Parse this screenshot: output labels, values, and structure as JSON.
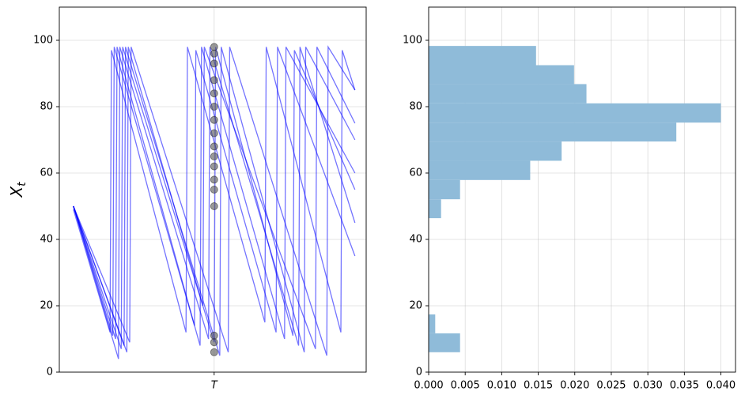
{
  "chart_data": [
    {
      "type": "line",
      "ylabel": "X",
      "ylabel_subscript": "t",
      "xlim": [
        -5,
        104
      ],
      "xticks": [
        {
          "value": 50,
          "label": "T"
        }
      ],
      "ylim": [
        0,
        110
      ],
      "yticks": [
        0,
        20,
        40,
        60,
        80,
        100
      ],
      "grid": true,
      "color": "#0000ff",
      "series": [
        {
          "x": [
            0,
            15,
            15.5,
            45,
            45.5,
            75,
            75.5,
            100
          ],
          "values": [
            50,
            10,
            98,
            8,
            98,
            10,
            98,
            60
          ]
        },
        {
          "x": [
            0,
            18,
            18.5,
            52,
            52.5,
            82,
            82.5,
            100
          ],
          "values": [
            50,
            8,
            98,
            5,
            98,
            6,
            98,
            70
          ]
        },
        {
          "x": [
            0,
            13,
            13.5,
            40,
            40.5,
            68,
            68.5,
            95,
            95.5,
            100
          ],
          "values": [
            49,
            12,
            97,
            12,
            98,
            15,
            98,
            12,
            97,
            85
          ]
        },
        {
          "x": [
            0,
            16,
            16.5,
            48,
            48.5,
            80,
            80.5,
            100
          ],
          "values": [
            50,
            4,
            98,
            10,
            98,
            8,
            98,
            45
          ]
        },
        {
          "x": [
            0,
            20,
            20.5,
            55,
            55.5,
            90,
            90.5,
            100
          ],
          "values": [
            50,
            9,
            98,
            6,
            98,
            5,
            98,
            85
          ]
        },
        {
          "x": [
            0,
            14,
            14.5,
            43,
            43.5,
            72,
            72.5,
            100
          ],
          "values": [
            50,
            11,
            98,
            14,
            97,
            12,
            98,
            35
          ]
        },
        {
          "x": [
            0,
            17,
            17.5,
            50,
            50.5,
            78,
            78.5,
            100
          ],
          "values": [
            50,
            7,
            98,
            9,
            98,
            11,
            97,
            55
          ]
        },
        {
          "x": [
            0,
            19,
            19.5,
            46,
            46.5,
            86,
            86.5,
            100
          ],
          "values": [
            50,
            6,
            98,
            20,
            98,
            7,
            98,
            75
          ]
        }
      ],
      "markers": {
        "color": "#555555",
        "values": [
          98,
          96,
          93,
          88,
          84,
          80,
          76,
          72,
          68,
          65,
          62,
          58,
          55,
          50,
          11,
          9,
          6
        ]
      }
    },
    {
      "type": "histogram",
      "orientation": "horizontal",
      "color": "#8fbbd9",
      "bins": [
        6.0,
        11.7,
        17.4,
        23.2,
        29.0,
        34.8,
        40.6,
        46.4,
        52.1,
        57.9,
        63.7,
        69.5,
        75.2,
        81.0,
        86.8,
        92.5,
        98.3
      ],
      "values": [
        0.0043,
        0.0009,
        0,
        0,
        0,
        0,
        0,
        0.0017,
        0.0043,
        0.0139,
        0.0182,
        0.0339,
        0.04,
        0.0216,
        0.0199,
        0.0147
      ],
      "xlim": [
        0,
        0.042
      ],
      "xticks": [
        {
          "value": 0,
          "label": "0.000"
        },
        {
          "value": 0.005,
          "label": "0.005"
        },
        {
          "value": 0.01,
          "label": "0.010"
        },
        {
          "value": 0.015,
          "label": "0.015"
        },
        {
          "value": 0.02,
          "label": "0.020"
        },
        {
          "value": 0.025,
          "label": "0.025"
        },
        {
          "value": 0.03,
          "label": "0.030"
        },
        {
          "value": 0.035,
          "label": "0.035"
        },
        {
          "value": 0.04,
          "label": "0.040"
        }
      ],
      "ylim": [
        0,
        110
      ],
      "yticks": [
        0,
        20,
        40,
        60,
        80,
        100
      ],
      "grid": true
    }
  ]
}
